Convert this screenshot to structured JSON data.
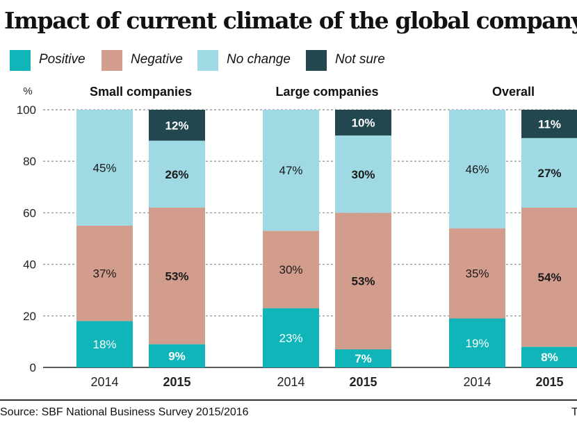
{
  "chart_data": {
    "type": "bar",
    "stacked": true,
    "title": "Impact of current climate of the global company",
    "ylabel": "%",
    "ylim": [
      0,
      100
    ],
    "yticks": [
      0,
      20,
      40,
      60,
      80,
      100
    ],
    "grid": true,
    "legend_position": "top-left",
    "series": [
      {
        "name": "Positive",
        "color": "#0fb5b8"
      },
      {
        "name": "Negative",
        "color": "#d39d8e"
      },
      {
        "name": "No change",
        "color": "#9fd9e3"
      },
      {
        "name": "Not sure",
        "color": "#22474f"
      }
    ],
    "groups": [
      {
        "name": "Small companies",
        "bars": [
          {
            "year": "2014",
            "values": [
              18,
              37,
              45,
              0
            ],
            "labels": [
              "18%",
              "37%",
              "45%",
              ""
            ]
          },
          {
            "year": "2015",
            "values": [
              9,
              53,
              26,
              12
            ],
            "labels": [
              "9%",
              "53%",
              "26%",
              "12%"
            ]
          }
        ]
      },
      {
        "name": "Large companies",
        "bars": [
          {
            "year": "2014",
            "values": [
              23,
              30,
              47,
              0
            ],
            "labels": [
              "23%",
              "30%",
              "47%",
              ""
            ]
          },
          {
            "year": "2015",
            "values": [
              7,
              53,
              30,
              10
            ],
            "labels": [
              "7%",
              "53%",
              "30%",
              "10%"
            ]
          }
        ]
      },
      {
        "name": "Overall",
        "bars": [
          {
            "year": "2014",
            "values": [
              19,
              35,
              46,
              0
            ],
            "labels": [
              "19%",
              "35%",
              "46%",
              ""
            ]
          },
          {
            "year": "2015",
            "values": [
              8,
              54,
              27,
              11
            ],
            "labels": [
              "8%",
              "54%",
              "27%",
              "11%"
            ]
          }
        ]
      }
    ]
  },
  "source": "Source: SBF National Business Survey 2015/2016",
  "corner_mark": "T"
}
